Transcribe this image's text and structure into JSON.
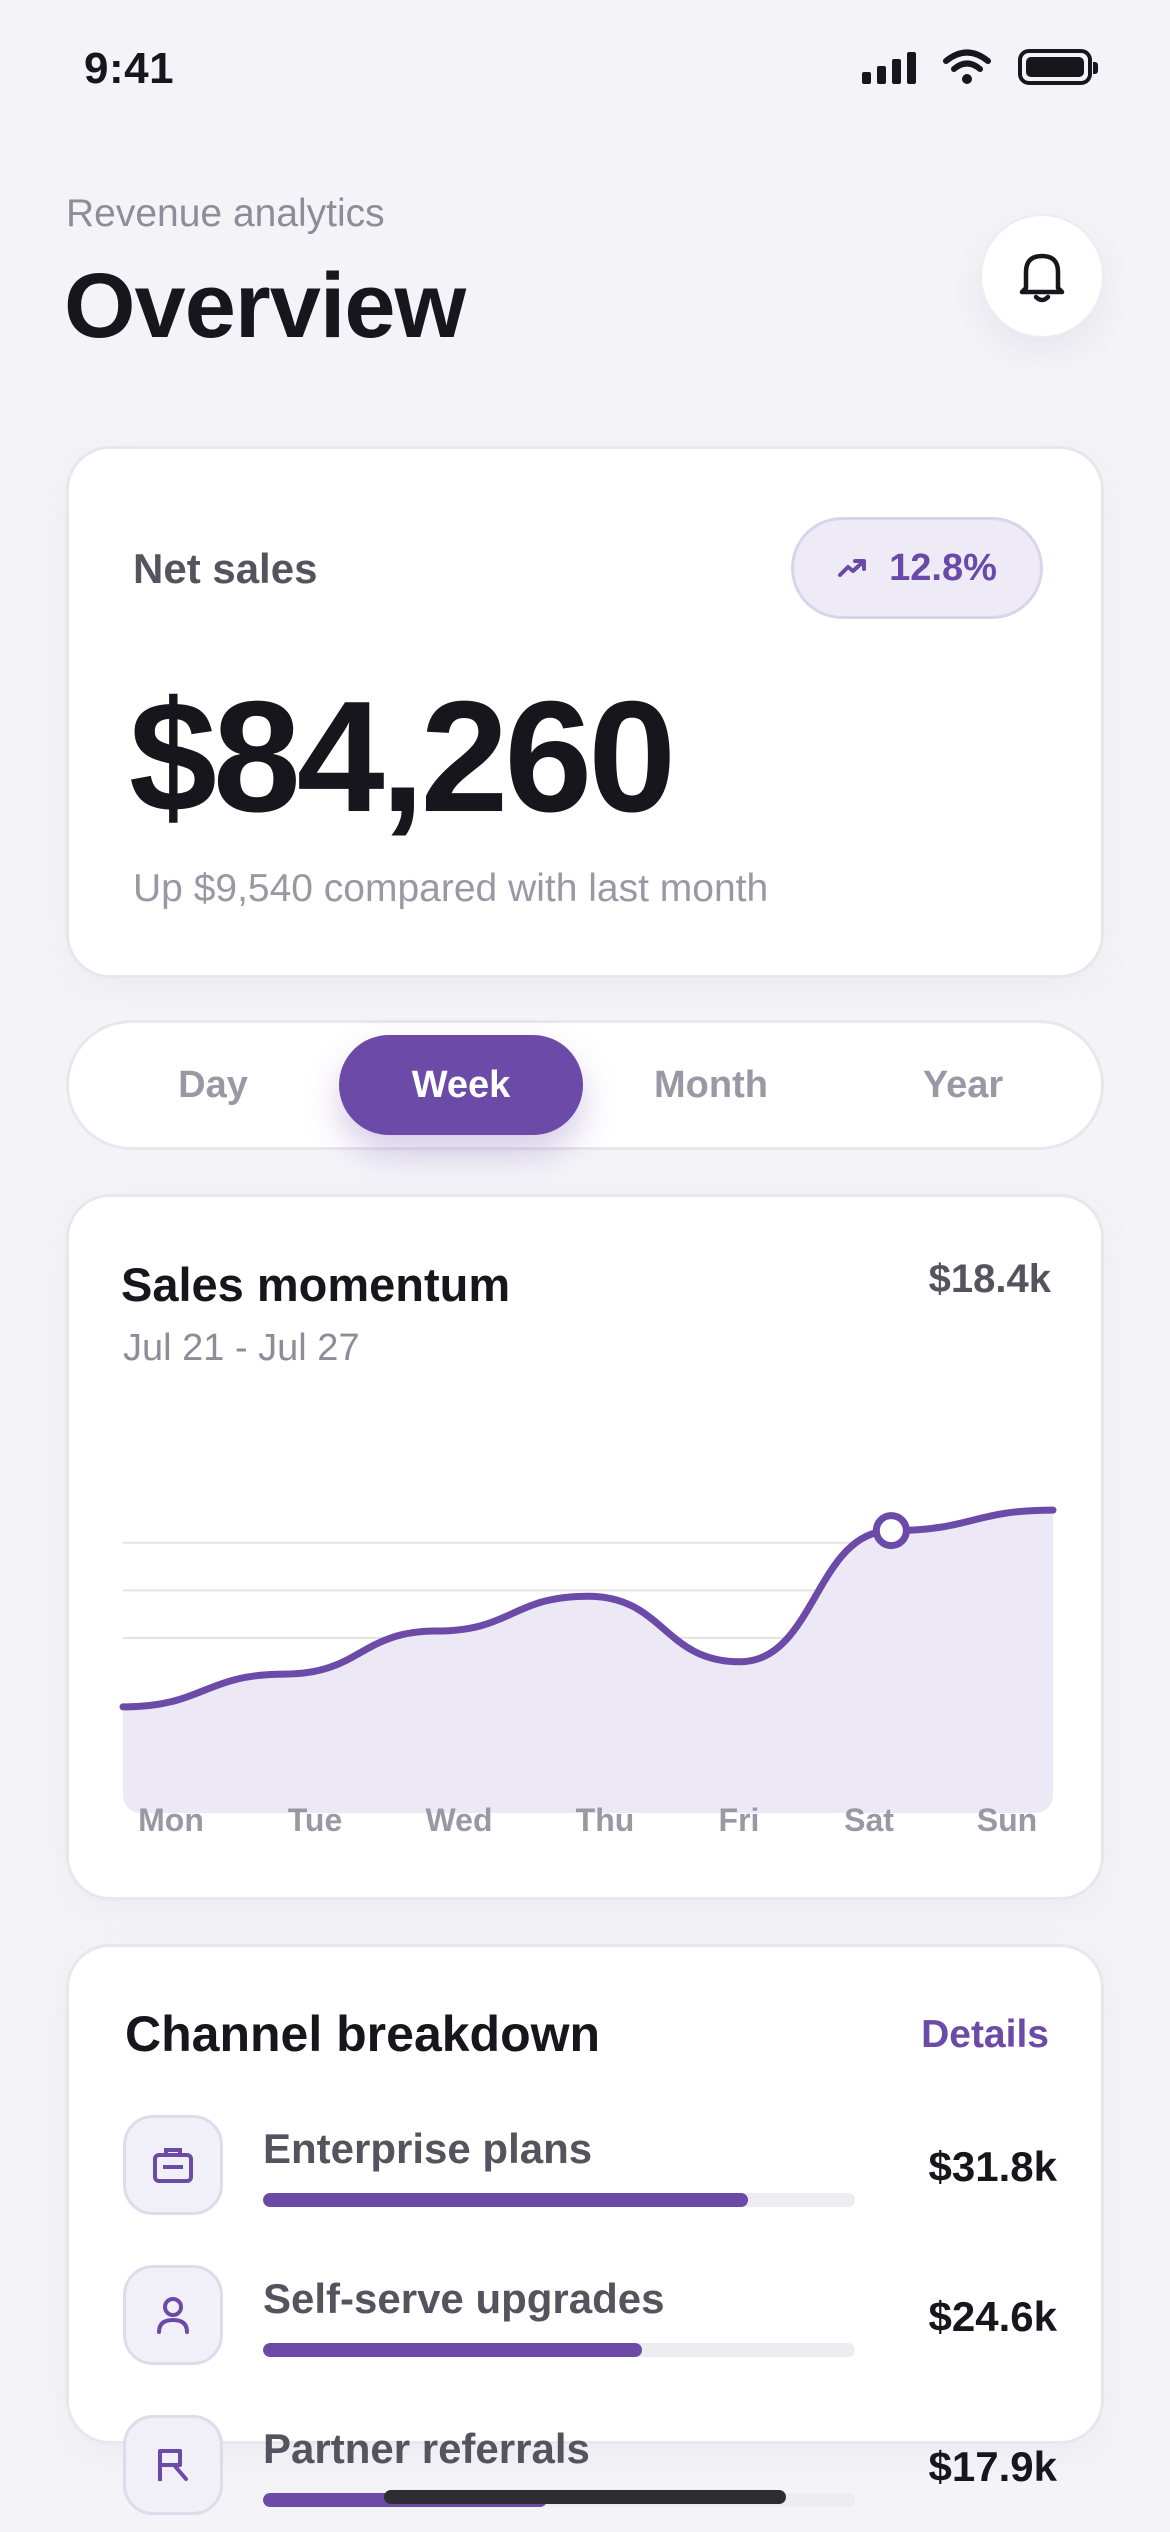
{
  "status_bar": {
    "time": "9:41",
    "icons": [
      "signal-icon",
      "wifi-icon",
      "battery-icon"
    ]
  },
  "header": {
    "kicker": "Revenue analytics",
    "title": "Overview",
    "action_icon": "bell-icon"
  },
  "net_sales": {
    "label": "Net sales",
    "change": "12.8%",
    "change_icon": "trend-up-icon",
    "value": "$84,260",
    "subtitle": "Up $9,540 compared with last month"
  },
  "periods": {
    "items": [
      "Day",
      "Week",
      "Month",
      "Year"
    ],
    "selected": "Week"
  },
  "sales_chart": {
    "title": "Sales momentum",
    "range": "Jul 21 - Jul 27",
    "total": "$18.4k"
  },
  "chart_data": {
    "type": "area",
    "title": "Sales momentum",
    "subtitle": "Jul 21 - Jul 27",
    "categories": [
      "Mon",
      "Tue",
      "Wed",
      "Thu",
      "Fri",
      "Sat",
      "Sun"
    ],
    "series": [
      {
        "values": [
          0.42,
          0.58,
          0.79,
          0.96,
          0.64,
          1.28,
          1.38
        ]
      }
    ],
    "highlight_index": 5,
    "ylim": [
      0,
      1.6
    ],
    "grid": true,
    "line_color": "#6b4aa8",
    "fill_color": "#ece8f5"
  },
  "channels": {
    "title": "Channel breakdown",
    "details_label": "Details",
    "items": [
      {
        "name": "Enterprise plans",
        "amount": "$31.8k",
        "share": 0.82,
        "icon": "briefcase-icon"
      },
      {
        "name": "Self-serve upgrades",
        "amount": "$24.6k",
        "share": 0.64,
        "icon": "user-icon"
      },
      {
        "name": "Partner referrals",
        "amount": "$17.9k",
        "share": 0.48,
        "icon": "flag-icon"
      }
    ]
  },
  "colors": {
    "accent": "#6b4aa8",
    "text": "#17161c",
    "muted": "#9a98a4",
    "background": "#f4f4f8"
  }
}
